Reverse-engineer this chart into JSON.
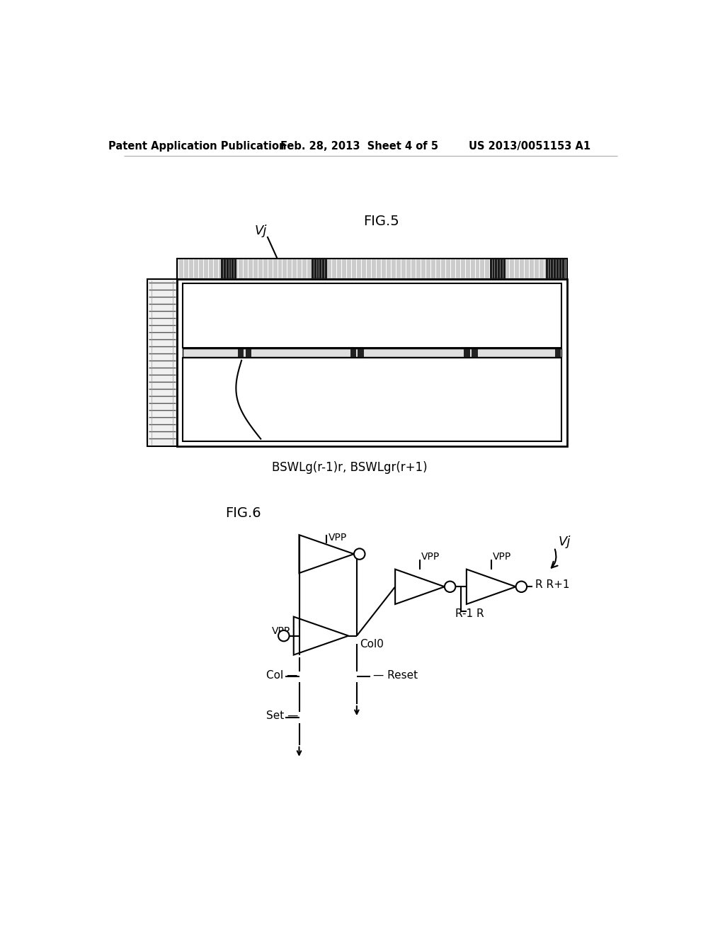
{
  "header_left": "Patent Application Publication",
  "header_mid": "Feb. 28, 2013  Sheet 4 of 5",
  "header_right": "US 2013/0051153 A1",
  "fig5_label": "FIG.5",
  "fig5_vj_label": "Vj",
  "fig5_bswl_label": "BSWLg(r-1)r, BSWLgr(r+1)",
  "fig6_label": "FIG.6",
  "fig6_vj_label": "Vj",
  "bg_color": "#ffffff"
}
